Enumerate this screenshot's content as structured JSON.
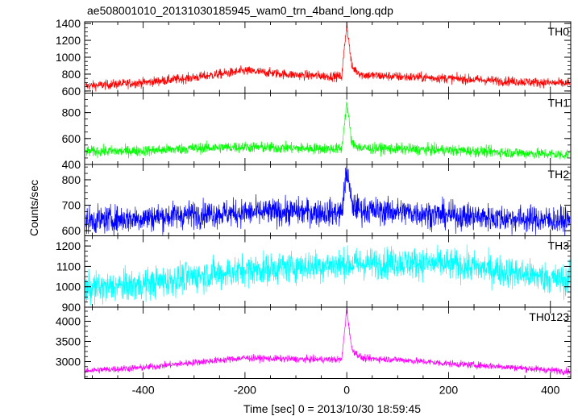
{
  "chart_data": {
    "type": "line",
    "title": "ae508001010_20131030185945_wam0_trn_4band_long.qdp",
    "xlabel": "Time [sec] 0 = 2013/10/30 18:59:45",
    "ylabel": "Counts/sec",
    "xlim": [
      -515,
      440
    ],
    "xticks": [
      -400,
      -200,
      0,
      200,
      400
    ],
    "grid": false,
    "panels": [
      {
        "name": "TH0",
        "color": "#ff0000",
        "ylim": [
          575,
          1420
        ],
        "yticks": [
          600,
          800,
          1000,
          1200,
          1400
        ],
        "profile": {
          "x": [
            -510,
            -400,
            -300,
            -200,
            -100,
            -10,
            0,
            10,
            30,
            100,
            200,
            300,
            430
          ],
          "y": [
            660,
            700,
            760,
            840,
            790,
            770,
            1400,
            880,
            790,
            770,
            750,
            720,
            690
          ]
        },
        "noise": 40
      },
      {
        "name": "TH1",
        "color": "#00ff00",
        "ylim": [
          400,
          950
        ],
        "yticks": [
          400,
          600,
          800
        ],
        "profile": {
          "x": [
            -510,
            -400,
            -300,
            -200,
            -100,
            -10,
            0,
            10,
            30,
            100,
            200,
            300,
            430
          ],
          "y": [
            500,
            505,
            525,
            535,
            525,
            520,
            880,
            560,
            525,
            520,
            510,
            495,
            475
          ]
        },
        "noise": 30
      },
      {
        "name": "TH2",
        "color": "#0000ff",
        "ylim": [
          580,
          860
        ],
        "yticks": [
          600,
          700,
          800
        ],
        "profile": {
          "x": [
            -510,
            -400,
            -300,
            -200,
            -100,
            -10,
            0,
            10,
            30,
            100,
            200,
            300,
            430
          ],
          "y": [
            640,
            650,
            665,
            670,
            675,
            670,
            840,
            700,
            680,
            675,
            660,
            650,
            640
          ]
        },
        "noise": 38
      },
      {
        "name": "TH3",
        "color": "#00ffff",
        "ylim": [
          900,
          1250
        ],
        "yticks": [
          900,
          1000,
          1100,
          1200
        ],
        "profile": {
          "x": [
            -510,
            -400,
            -300,
            -200,
            -100,
            0,
            100,
            200,
            300,
            430
          ],
          "y": [
            990,
            1010,
            1050,
            1080,
            1100,
            1110,
            1120,
            1110,
            1080,
            1030
          ]
        },
        "noise": 55
      },
      {
        "name": "TH0123",
        "color": "#ff00ff",
        "ylim": [
          2580,
          4350
        ],
        "yticks": [
          3000,
          3500,
          4000
        ],
        "profile": {
          "x": [
            -510,
            -400,
            -300,
            -200,
            -100,
            -10,
            0,
            10,
            30,
            100,
            200,
            300,
            430
          ],
          "y": [
            2780,
            2850,
            2980,
            3090,
            3060,
            3050,
            4300,
            3300,
            3080,
            3050,
            2950,
            2880,
            2760
          ]
        },
        "noise": 60
      }
    ]
  }
}
